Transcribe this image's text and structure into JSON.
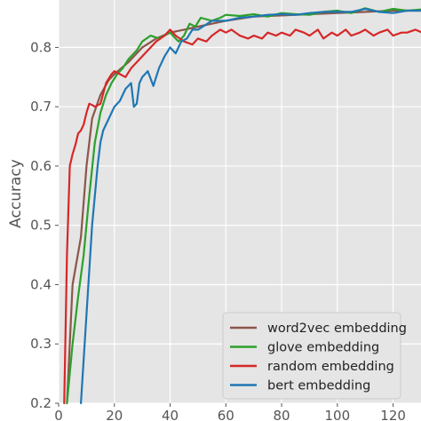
{
  "chart_data": {
    "type": "line",
    "title": "",
    "xlabel": "",
    "ylabel": "Accuracy",
    "xlim": [
      0,
      130
    ],
    "ylim": [
      0.2,
      0.88
    ],
    "x_ticks": [
      0,
      20,
      40,
      60,
      80,
      100,
      120
    ],
    "y_ticks": [
      0.2,
      0.3,
      0.4,
      0.5,
      0.6,
      0.7,
      0.8
    ],
    "grid": true,
    "legend_position": "lower-right",
    "series": [
      {
        "name": "word2vec embedding",
        "color": "#8c564b",
        "x": [
          3,
          5,
          8,
          10,
          12,
          15,
          18,
          20,
          25,
          30,
          35,
          40,
          45,
          50,
          55,
          60,
          70,
          80,
          90,
          100,
          110,
          120,
          130
        ],
        "y": [
          0.2,
          0.4,
          0.48,
          0.6,
          0.68,
          0.72,
          0.745,
          0.755,
          0.775,
          0.8,
          0.815,
          0.825,
          0.83,
          0.835,
          0.84,
          0.845,
          0.852,
          0.854,
          0.856,
          0.858,
          0.86,
          0.862,
          0.862
        ]
      },
      {
        "name": "glove embedding",
        "color": "#2ca02c",
        "x": [
          3,
          5,
          7,
          9,
          11,
          13,
          15,
          17,
          19,
          21,
          23,
          25,
          28,
          30,
          33,
          36,
          40,
          43,
          45,
          47,
          49,
          51,
          55,
          58,
          60,
          65,
          70,
          75,
          80,
          85,
          90,
          95,
          100,
          105,
          110,
          115,
          120,
          125,
          130
        ],
        "y": [
          0.2,
          0.3,
          0.38,
          0.45,
          0.55,
          0.64,
          0.69,
          0.72,
          0.74,
          0.755,
          0.765,
          0.78,
          0.795,
          0.81,
          0.82,
          0.815,
          0.825,
          0.81,
          0.82,
          0.84,
          0.835,
          0.85,
          0.845,
          0.85,
          0.855,
          0.853,
          0.856,
          0.852,
          0.858,
          0.856,
          0.855,
          0.86,
          0.862,
          0.858,
          0.866,
          0.86,
          0.865,
          0.862,
          0.864
        ]
      },
      {
        "name": "random embedding",
        "color": "#d62728",
        "x": [
          2,
          3,
          4,
          5,
          6,
          7,
          8,
          9,
          10,
          11,
          12,
          13,
          15,
          17,
          19,
          20,
          22,
          24,
          26,
          28,
          30,
          33,
          35,
          38,
          40,
          42,
          45,
          48,
          50,
          53,
          55,
          58,
          60,
          62,
          65,
          68,
          70,
          73,
          75,
          78,
          80,
          83,
          85,
          88,
          90,
          93,
          95,
          98,
          100,
          103,
          105,
          108,
          110,
          113,
          115,
          118,
          120,
          123,
          125,
          128,
          130
        ],
        "y": [
          0.2,
          0.45,
          0.6,
          0.62,
          0.635,
          0.655,
          0.66,
          0.67,
          0.69,
          0.705,
          0.703,
          0.7,
          0.705,
          0.74,
          0.755,
          0.76,
          0.755,
          0.75,
          0.765,
          0.775,
          0.785,
          0.8,
          0.81,
          0.82,
          0.83,
          0.82,
          0.81,
          0.805,
          0.815,
          0.81,
          0.82,
          0.83,
          0.825,
          0.83,
          0.82,
          0.815,
          0.82,
          0.815,
          0.825,
          0.82,
          0.825,
          0.82,
          0.83,
          0.825,
          0.82,
          0.83,
          0.815,
          0.825,
          0.82,
          0.83,
          0.82,
          0.825,
          0.83,
          0.82,
          0.825,
          0.83,
          0.82,
          0.825,
          0.825,
          0.83,
          0.826
        ]
      },
      {
        "name": "bert embedding",
        "color": "#1f77b4",
        "x": [
          8,
          10,
          12,
          14,
          15,
          16,
          18,
          20,
          22,
          24,
          26,
          27,
          28,
          29,
          30,
          32,
          34,
          35,
          36,
          38,
          40,
          42,
          44,
          46,
          48,
          50,
          55,
          60,
          65,
          70,
          75,
          80,
          85,
          90,
          95,
          100,
          105,
          110,
          115,
          120,
          125,
          130
        ],
        "y": [
          0.2,
          0.35,
          0.5,
          0.6,
          0.64,
          0.66,
          0.68,
          0.7,
          0.71,
          0.73,
          0.74,
          0.7,
          0.705,
          0.74,
          0.75,
          0.76,
          0.735,
          0.75,
          0.765,
          0.785,
          0.8,
          0.79,
          0.81,
          0.815,
          0.83,
          0.83,
          0.845,
          0.845,
          0.85,
          0.852,
          0.855,
          0.856,
          0.855,
          0.858,
          0.86,
          0.86,
          0.86,
          0.865,
          0.86,
          0.858,
          0.862,
          0.862
        ]
      }
    ]
  }
}
